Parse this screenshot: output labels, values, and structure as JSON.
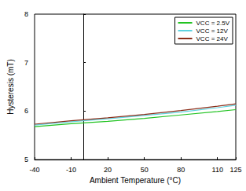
{
  "chart_data": {
    "type": "line",
    "x_label": "Ambient Temperature (°C)",
    "y_label": "Hysteresis (mT)",
    "x": [
      -40,
      -10,
      20,
      50,
      80,
      110,
      125
    ],
    "series": [
      {
        "name": "VCC = 2.5V",
        "color": "#22c322",
        "values": [
          5.68,
          5.74,
          5.79,
          5.85,
          5.92,
          5.99,
          6.03
        ]
      },
      {
        "name": "VCC = 12V",
        "color": "#5fd3e0",
        "values": [
          5.71,
          5.78,
          5.84,
          5.91,
          5.98,
          6.07,
          6.12
        ]
      },
      {
        "name": "VCC = 24V",
        "color": "#8b2e1a",
        "values": [
          5.73,
          5.8,
          5.86,
          5.93,
          6.01,
          6.1,
          6.15
        ]
      }
    ],
    "xlim": [
      -40,
      125
    ],
    "xticks": [
      -40,
      -10,
      20,
      50,
      80,
      110,
      125
    ],
    "ylim": [
      5,
      8
    ],
    "yticks": [
      5,
      6,
      7,
      8
    ],
    "grid": false,
    "legend": "upper right"
  }
}
